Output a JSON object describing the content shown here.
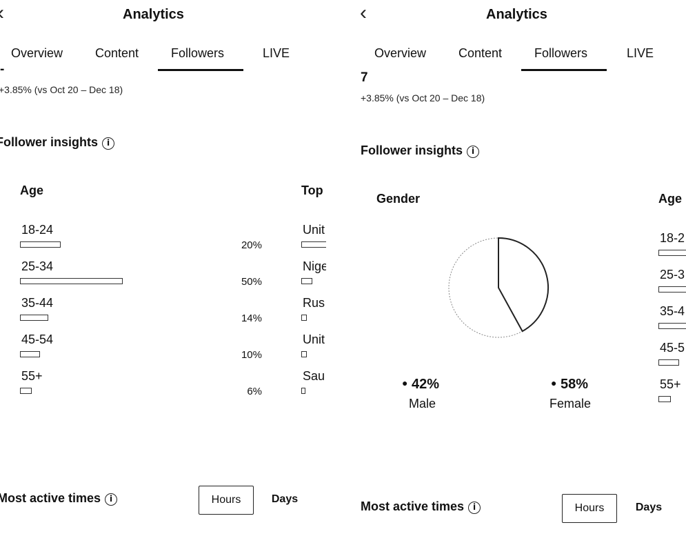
{
  "header": {
    "title": "Analytics"
  },
  "tabs": [
    "Overview",
    "Content",
    "Followers",
    "LIVE"
  ],
  "active_tab": "Followers",
  "followers": {
    "total_right": "7",
    "total_left": "-",
    "change_text": "+3.85% (vs Oct 20 – Dec 18)"
  },
  "insights": {
    "title": "Follower insights"
  },
  "age_card": {
    "title": "Age",
    "rows": [
      {
        "label": "18-24",
        "percent": "20%",
        "value": 20
      },
      {
        "label": "25-34",
        "percent": "50%",
        "value": 50
      },
      {
        "label": "35-44",
        "percent": "14%",
        "value": 14
      },
      {
        "label": "45-54",
        "percent": "10%",
        "value": 10
      },
      {
        "label": "55+",
        "percent": "6%",
        "value": 6
      }
    ],
    "right_title": "Age",
    "right_labels": [
      "18-2",
      "25-3",
      "35-4",
      "45-5",
      "55+"
    ]
  },
  "top_card": {
    "title": "Top",
    "rows": [
      "Unit",
      "Nige",
      "Rus",
      "Unit",
      "Sau"
    ]
  },
  "gender_card": {
    "title": "Gender",
    "male": {
      "percent": "42%",
      "label": "Male",
      "value": 42
    },
    "female": {
      "percent": "58%",
      "label": "Female",
      "value": 58
    }
  },
  "active_times": {
    "title": "Most active times",
    "hours": "Hours",
    "days": "Days"
  },
  "colors": {
    "text": "#111111",
    "outline": "#333333"
  }
}
